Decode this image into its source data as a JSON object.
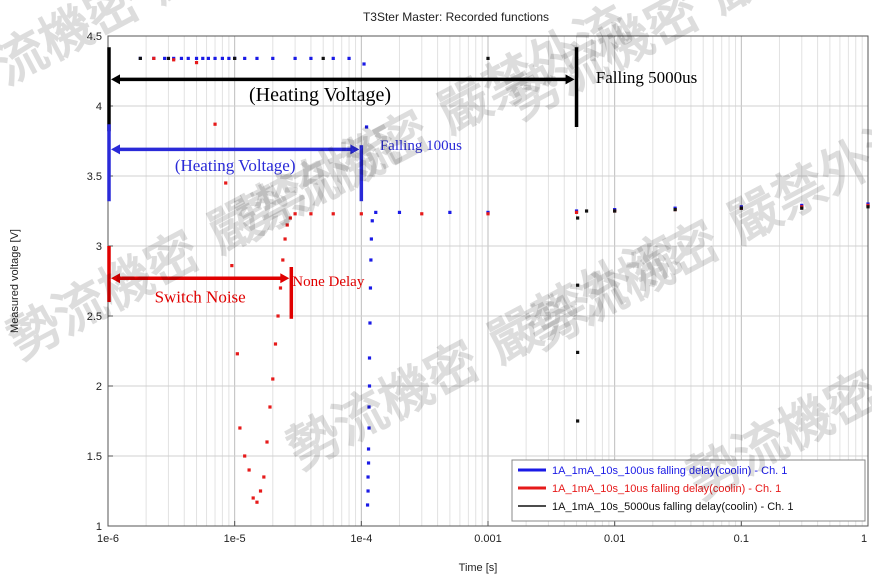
{
  "chart_data": {
    "type": "scatter",
    "title": "T3Ster Master: Recorded functions",
    "xlabel": "Time [s]",
    "ylabel": "Measured voltage [V]",
    "x_scale": "log",
    "xlim": [
      1e-06,
      1
    ],
    "ylim": [
      1,
      4.5
    ],
    "grid": true,
    "legend_position": "bottom-right",
    "x_ticks": [
      {
        "value": 1e-06,
        "label": "1e-6"
      },
      {
        "value": 1e-05,
        "label": "1e-5"
      },
      {
        "value": 0.0001,
        "label": "1e-4"
      },
      {
        "value": 0.001,
        "label": "0.001"
      },
      {
        "value": 0.01,
        "label": "0.01"
      },
      {
        "value": 0.1,
        "label": "0.1"
      },
      {
        "value": 1,
        "label": "1"
      }
    ],
    "y_ticks": [
      {
        "value": 1,
        "label": "1"
      },
      {
        "value": 1.5,
        "label": "1.5"
      },
      {
        "value": 2,
        "label": "2"
      },
      {
        "value": 2.5,
        "label": "2.5"
      },
      {
        "value": 3,
        "label": "3"
      },
      {
        "value": 3.5,
        "label": "3.5"
      },
      {
        "value": 4,
        "label": "4"
      },
      {
        "value": 4.5,
        "label": "4.5"
      }
    ],
    "series": [
      {
        "name": "1A_1mA_10s_100us falling delay(coolin) - Ch. 1",
        "color": "#1a1ae6",
        "points": [
          [
            1.8e-06,
            4.34
          ],
          [
            2.3e-06,
            4.34
          ],
          [
            2.8e-06,
            4.34
          ],
          [
            3.3e-06,
            4.34
          ],
          [
            3.8e-06,
            4.34
          ],
          [
            4.3e-06,
            4.34
          ],
          [
            5e-06,
            4.34
          ],
          [
            5.6e-06,
            4.34
          ],
          [
            6.2e-06,
            4.34
          ],
          [
            7e-06,
            4.34
          ],
          [
            8e-06,
            4.34
          ],
          [
            9e-06,
            4.34
          ],
          [
            1e-05,
            4.34
          ],
          [
            1.2e-05,
            4.34
          ],
          [
            1.5e-05,
            4.34
          ],
          [
            2e-05,
            4.34
          ],
          [
            3e-05,
            4.34
          ],
          [
            4e-05,
            4.34
          ],
          [
            6e-05,
            4.34
          ],
          [
            8e-05,
            4.34
          ],
          [
            0.000105,
            4.3
          ],
          [
            0.00011,
            3.85
          ],
          [
            0.000112,
            1.15
          ],
          [
            0.000113,
            1.25
          ],
          [
            0.000113,
            1.35
          ],
          [
            0.000114,
            1.45
          ],
          [
            0.000114,
            1.55
          ],
          [
            0.000115,
            1.7
          ],
          [
            0.000115,
            1.85
          ],
          [
            0.000116,
            2.0
          ],
          [
            0.000116,
            2.2
          ],
          [
            0.000117,
            2.45
          ],
          [
            0.000118,
            2.7
          ],
          [
            0.000119,
            2.9
          ],
          [
            0.00012,
            3.05
          ],
          [
            0.000122,
            3.18
          ],
          [
            0.00013,
            3.24
          ],
          [
            0.0002,
            3.24
          ],
          [
            0.0005,
            3.24
          ],
          [
            0.001,
            3.24
          ],
          [
            0.005,
            3.25
          ],
          [
            0.01,
            3.26
          ],
          [
            0.03,
            3.27
          ],
          [
            0.1,
            3.28
          ],
          [
            0.3,
            3.29
          ],
          [
            1,
            3.3
          ]
        ]
      },
      {
        "name": "1A_1mA_10s_10us falling delay(coolin) - Ch. 1",
        "color": "#e61a1a",
        "points": [
          [
            2.3e-06,
            4.34
          ],
          [
            3.3e-06,
            4.33
          ],
          [
            5e-06,
            4.31
          ],
          [
            7e-06,
            3.87
          ],
          [
            8.5e-06,
            3.45
          ],
          [
            9.5e-06,
            2.86
          ],
          [
            1.05e-05,
            2.23
          ],
          [
            1.1e-05,
            1.7
          ],
          [
            1.2e-05,
            1.5
          ],
          [
            1.3e-05,
            1.4
          ],
          [
            1.4e-05,
            1.2
          ],
          [
            1.5e-05,
            1.17
          ],
          [
            1.6e-05,
            1.25
          ],
          [
            1.7e-05,
            1.35
          ],
          [
            1.8e-05,
            1.6
          ],
          [
            1.9e-05,
            1.85
          ],
          [
            2e-05,
            2.05
          ],
          [
            2.1e-05,
            2.3
          ],
          [
            2.2e-05,
            2.5
          ],
          [
            2.3e-05,
            2.7
          ],
          [
            2.4e-05,
            2.9
          ],
          [
            2.5e-05,
            3.05
          ],
          [
            2.6e-05,
            3.15
          ],
          [
            2.75e-05,
            3.2
          ],
          [
            3e-05,
            3.23
          ],
          [
            4e-05,
            3.23
          ],
          [
            6e-05,
            3.23
          ],
          [
            0.0001,
            3.23
          ],
          [
            0.0003,
            3.23
          ],
          [
            0.001,
            3.23
          ],
          [
            0.005,
            3.24
          ],
          [
            0.01,
            3.25
          ],
          [
            0.03,
            3.26
          ],
          [
            0.1,
            3.27
          ],
          [
            0.3,
            3.28
          ],
          [
            1,
            3.29
          ]
        ]
      },
      {
        "name": "1A_1mA_10s_5000us falling delay(coolin) - Ch. 1",
        "color": "#111111",
        "points": [
          [
            1.8e-06,
            4.34
          ],
          [
            3e-06,
            4.34
          ],
          [
            1e-05,
            4.34
          ],
          [
            5e-05,
            4.34
          ],
          [
            0.001,
            4.34
          ],
          [
            0.005,
            4.34
          ],
          [
            0.0051,
            3.2
          ],
          [
            0.0051,
            2.72
          ],
          [
            0.0051,
            2.24
          ],
          [
            0.0051,
            1.75
          ],
          [
            0.006,
            3.25
          ],
          [
            0.01,
            3.25
          ],
          [
            0.03,
            3.26
          ],
          [
            0.1,
            3.27
          ],
          [
            0.3,
            3.27
          ],
          [
            1,
            3.28
          ]
        ]
      }
    ],
    "annotations": [
      {
        "text": "(Heating Voltage)",
        "color": "#000000",
        "span": [
          1e-06,
          0.005
        ],
        "y": 4.19,
        "label_y": 4.08
      },
      {
        "text": "Falling 5000us",
        "color": "#000000",
        "x": 0.0055,
        "y": 4.2
      },
      {
        "text": "(Heating Voltage)",
        "color": "#2a2ad8",
        "span": [
          1e-06,
          0.0001
        ],
        "y": 3.69,
        "label_y": 3.58
      },
      {
        "text": "Falling 100us",
        "color": "#2a2ad8",
        "x": 0.00014,
        "y": 3.72
      },
      {
        "text": "Switch Noise",
        "color": "#e00000",
        "span": [
          1e-06,
          2.8e-05
        ],
        "y": 2.77,
        "label_y": 2.64
      },
      {
        "text": "None Delay",
        "color": "#e00000",
        "x": 2.85e-05,
        "y": 2.75
      }
    ]
  },
  "watermark": "勢流機密 嚴禁外流"
}
